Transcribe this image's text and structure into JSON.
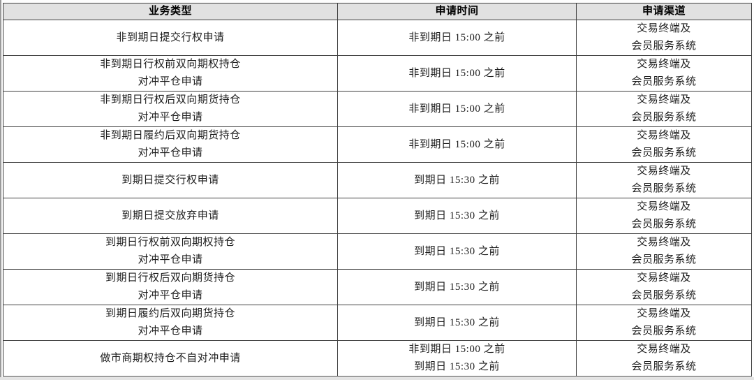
{
  "table": {
    "columns": [
      {
        "label": "业务类型"
      },
      {
        "label": "申请时间"
      },
      {
        "label": "申请渠道"
      }
    ],
    "rows": [
      {
        "type": [
          "非到期日提交行权申请"
        ],
        "time": [
          "非到期日 15:00 之前"
        ],
        "channel": [
          "交易终端及",
          "会员服务系统"
        ]
      },
      {
        "type": [
          "非到期日行权前双向期权持仓",
          "对冲平仓申请"
        ],
        "time": [
          "非到期日 15:00 之前"
        ],
        "channel": [
          "交易终端及",
          "会员服务系统"
        ]
      },
      {
        "type": [
          "非到期日行权后双向期货持仓",
          "对冲平仓申请"
        ],
        "time": [
          "非到期日 15:00 之前"
        ],
        "channel": [
          "交易终端及",
          "会员服务系统"
        ]
      },
      {
        "type": [
          "非到期日履约后双向期货持仓",
          "对冲平仓申请"
        ],
        "time": [
          "非到期日 15:00 之前"
        ],
        "channel": [
          "交易终端及",
          "会员服务系统"
        ]
      },
      {
        "type": [
          "到期日提交行权申请"
        ],
        "time": [
          "到期日 15:30 之前"
        ],
        "channel": [
          "交易终端及",
          "会员服务系统"
        ]
      },
      {
        "type": [
          "到期日提交放弃申请"
        ],
        "time": [
          "到期日 15:30 之前"
        ],
        "channel": [
          "交易终端及",
          "会员服务系统"
        ]
      },
      {
        "type": [
          "到期日行权前双向期权持仓",
          "对冲平仓申请"
        ],
        "time": [
          "到期日 15:30 之前"
        ],
        "channel": [
          "交易终端及",
          "会员服务系统"
        ]
      },
      {
        "type": [
          "到期日行权后双向期货持仓",
          "对冲平仓申请"
        ],
        "time": [
          "到期日 15:30 之前"
        ],
        "channel": [
          "交易终端及",
          "会员服务系统"
        ]
      },
      {
        "type": [
          "到期日履约后双向期货持仓",
          "对冲平仓申请"
        ],
        "time": [
          "到期日 15:30 之前"
        ],
        "channel": [
          "交易终端及",
          "会员服务系统"
        ]
      },
      {
        "type": [
          "做市商期权持仓不自对冲申请"
        ],
        "time": [
          "非到期日 15:00 之前",
          "到期日 15:30 之前"
        ],
        "channel": [
          "交易终端及",
          "会员服务系统"
        ]
      }
    ]
  },
  "colors": {
    "header_bg": "#e1e1e1",
    "border": "#3f3f3f",
    "text": "#1c1c1c",
    "table_bg": "#ffffff",
    "page_edge": "#e3e3e3"
  }
}
